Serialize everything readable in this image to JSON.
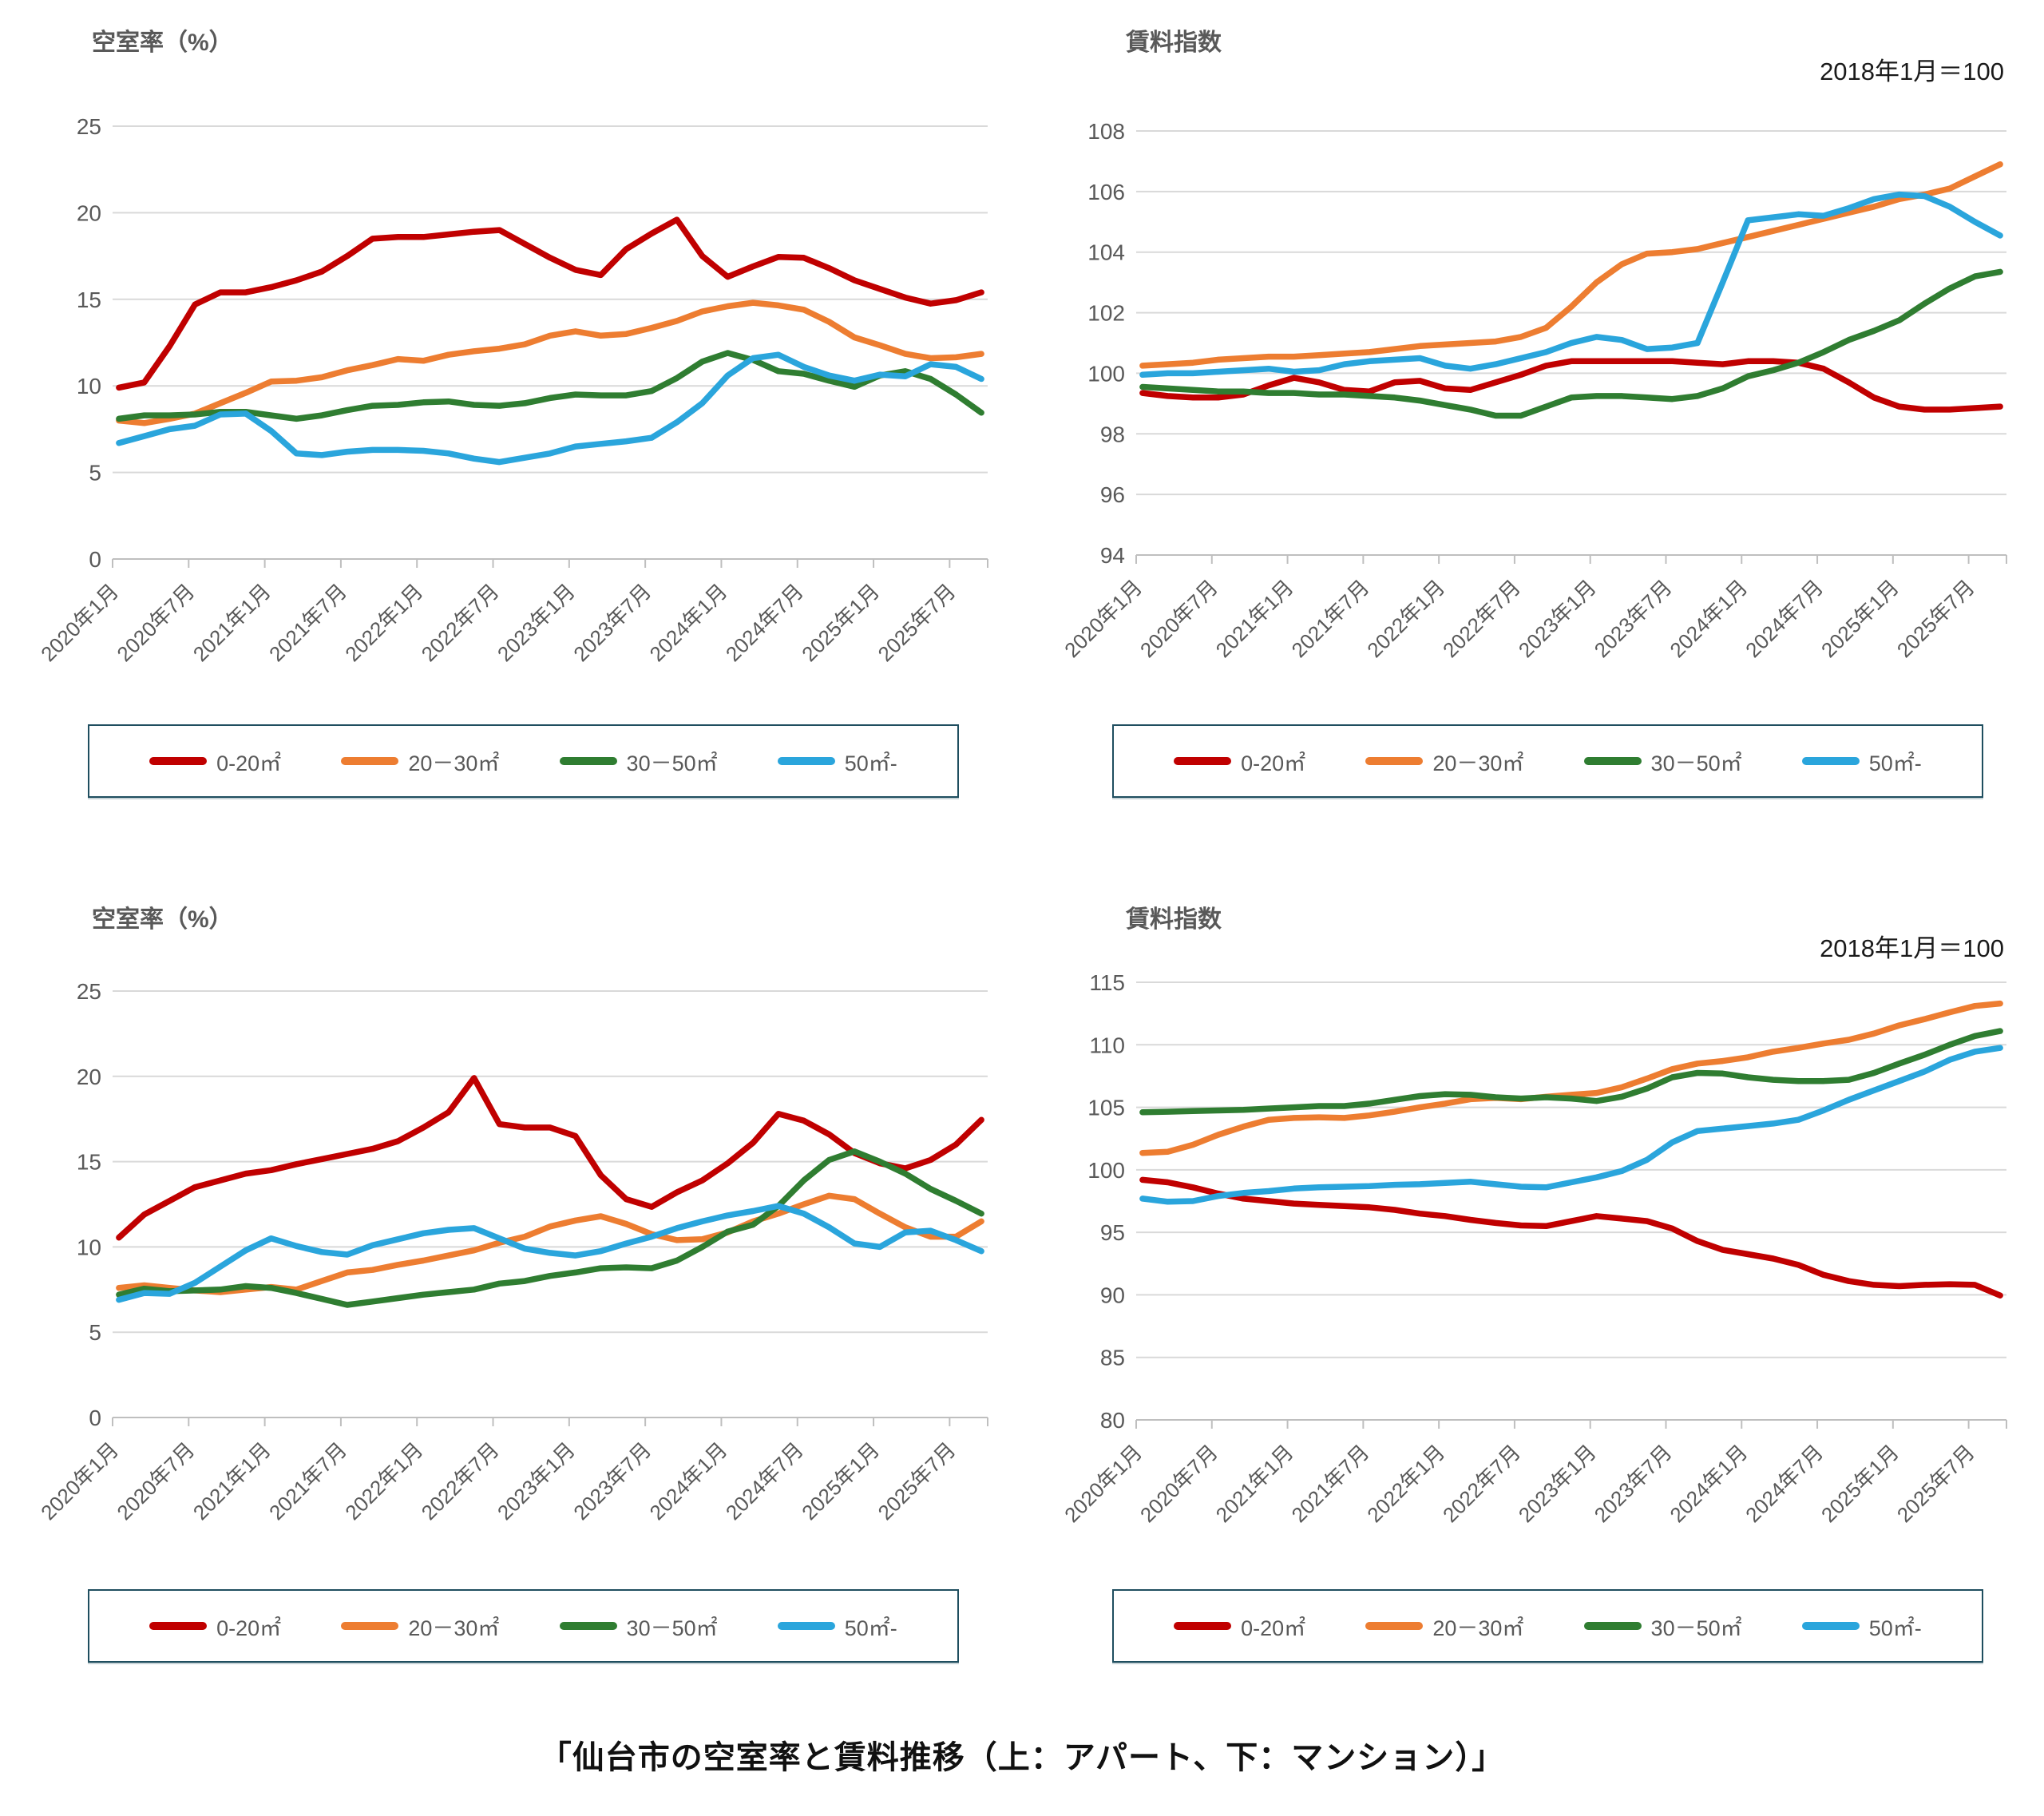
{
  "caption": "「仙台市の空室率と賃料推移（上：アパート、下：マンション）」",
  "legend": {
    "items": [
      {
        "label": "0-20㎡",
        "color": "#c00000"
      },
      {
        "label": "20－30㎡",
        "color": "#ed7d31"
      },
      {
        "label": "30－50㎡",
        "color": "#2f7d31"
      },
      {
        "label": "50㎡-",
        "color": "#2aa5dc"
      }
    ]
  },
  "xtick_labels": [
    "2020年1月",
    "2020年7月",
    "2021年1月",
    "2021年7月",
    "2022年1月",
    "2022年7月",
    "2023年1月",
    "2023年7月",
    "2024年1月",
    "2024年7月",
    "2025年1月",
    "2025年7月"
  ],
  "chart_data": [
    {
      "id": "apartment-vacancy",
      "type": "line",
      "title": "空室率（%）",
      "subtitle": "",
      "ylim": [
        0,
        25
      ],
      "yticks": [
        0,
        5,
        10,
        15,
        20,
        25
      ],
      "total_months": 69,
      "month_step": 2,
      "series": [
        {
          "name": "0-20㎡",
          "color": "#c00000",
          "values": [
            9.9,
            10.2,
            12.3,
            14.7,
            15.4,
            15.4,
            15.7,
            16.1,
            16.6,
            17.5,
            18.5,
            18.6,
            18.6,
            18.75,
            18.9,
            19.0,
            18.2,
            17.4,
            16.7,
            16.4,
            17.9,
            18.8,
            19.6,
            17.5,
            16.3,
            16.9,
            17.45,
            17.4,
            16.8,
            16.1,
            15.6,
            15.1,
            14.75,
            14.95,
            15.4
          ]
        },
        {
          "name": "20－30㎡",
          "color": "#ed7d31",
          "values": [
            8.0,
            7.85,
            8.1,
            8.4,
            9.0,
            9.6,
            10.25,
            10.3,
            10.5,
            10.9,
            11.2,
            11.55,
            11.45,
            11.8,
            12.0,
            12.15,
            12.4,
            12.9,
            13.15,
            12.9,
            13.0,
            13.35,
            13.75,
            14.3,
            14.6,
            14.8,
            14.65,
            14.4,
            13.7,
            12.8,
            12.35,
            11.85,
            11.6,
            11.65,
            11.85
          ]
        },
        {
          "name": "30－50㎡",
          "color": "#2f7d31",
          "values": [
            8.1,
            8.3,
            8.3,
            8.35,
            8.5,
            8.5,
            8.3,
            8.1,
            8.3,
            8.6,
            8.85,
            8.9,
            9.05,
            9.1,
            8.9,
            8.85,
            9.0,
            9.3,
            9.5,
            9.45,
            9.45,
            9.7,
            10.45,
            11.4,
            11.9,
            11.5,
            10.85,
            10.7,
            10.3,
            9.95,
            10.6,
            10.85,
            10.4,
            9.5,
            8.45
          ]
        },
        {
          "name": "50㎡-",
          "color": "#2aa5dc",
          "values": [
            6.7,
            7.1,
            7.5,
            7.7,
            8.35,
            8.4,
            7.4,
            6.1,
            6.0,
            6.2,
            6.3,
            6.3,
            6.25,
            6.1,
            5.8,
            5.6,
            5.85,
            6.1,
            6.5,
            6.65,
            6.8,
            7.0,
            7.9,
            9.0,
            10.6,
            11.6,
            11.8,
            11.1,
            10.6,
            10.3,
            10.65,
            10.55,
            11.25,
            11.1,
            10.4
          ]
        }
      ]
    },
    {
      "id": "apartment-rent-index",
      "type": "line",
      "title": "賃料指数",
      "subtitle": "2018年1月＝100",
      "ylim": [
        94,
        108
      ],
      "yticks": [
        94,
        96,
        98,
        100,
        102,
        104,
        106,
        108
      ],
      "total_months": 69,
      "month_step": 2,
      "series": [
        {
          "name": "0-20㎡",
          "color": "#c00000",
          "values": [
            99.35,
            99.25,
            99.2,
            99.2,
            99.3,
            99.6,
            99.85,
            99.7,
            99.45,
            99.4,
            99.7,
            99.75,
            99.5,
            99.45,
            99.7,
            99.95,
            100.25,
            100.4,
            100.4,
            100.4,
            100.4,
            100.4,
            100.35,
            100.3,
            100.4,
            100.4,
            100.35,
            100.15,
            99.7,
            99.2,
            98.9,
            98.8,
            98.8,
            98.85,
            98.9
          ]
        },
        {
          "name": "20－30㎡",
          "color": "#ed7d31",
          "values": [
            100.25,
            100.3,
            100.35,
            100.45,
            100.5,
            100.55,
            100.55,
            100.6,
            100.65,
            100.7,
            100.8,
            100.9,
            100.95,
            101.0,
            101.05,
            101.2,
            101.5,
            102.2,
            103.0,
            103.6,
            103.95,
            104.0,
            104.1,
            104.3,
            104.5,
            104.7,
            104.9,
            105.1,
            105.3,
            105.5,
            105.75,
            105.9,
            106.1,
            106.5,
            106.9
          ]
        },
        {
          "name": "30－50㎡",
          "color": "#2f7d31",
          "values": [
            99.55,
            99.5,
            99.45,
            99.4,
            99.4,
            99.35,
            99.35,
            99.3,
            99.3,
            99.25,
            99.2,
            99.1,
            98.95,
            98.8,
            98.6,
            98.6,
            98.9,
            99.2,
            99.25,
            99.25,
            99.2,
            99.15,
            99.25,
            99.5,
            99.9,
            100.1,
            100.35,
            100.7,
            101.1,
            101.4,
            101.75,
            102.3,
            102.8,
            103.2,
            103.35
          ]
        },
        {
          "name": "50㎡-",
          "color": "#2aa5dc",
          "values": [
            99.95,
            100.0,
            100.0,
            100.05,
            100.1,
            100.15,
            100.05,
            100.1,
            100.3,
            100.4,
            100.45,
            100.5,
            100.25,
            100.15,
            100.3,
            100.5,
            100.7,
            101.0,
            101.2,
            101.1,
            100.8,
            100.85,
            101.0,
            103.0,
            105.05,
            105.15,
            105.25,
            105.2,
            105.45,
            105.75,
            105.9,
            105.85,
            105.5,
            105.0,
            104.55
          ]
        }
      ]
    },
    {
      "id": "mansion-vacancy",
      "type": "line",
      "title": "空室率（%）",
      "subtitle": "",
      "ylim": [
        0,
        25
      ],
      "yticks": [
        0,
        5,
        10,
        15,
        20,
        25
      ],
      "total_months": 69,
      "month_step": 2,
      "series": [
        {
          "name": "0-20㎡",
          "color": "#c00000",
          "values": [
            10.55,
            11.9,
            12.7,
            13.5,
            13.9,
            14.3,
            14.5,
            14.85,
            15.15,
            15.45,
            15.75,
            16.2,
            17.0,
            17.9,
            19.9,
            17.2,
            17.0,
            17.0,
            16.5,
            14.2,
            12.8,
            12.35,
            13.2,
            13.9,
            14.9,
            16.1,
            17.8,
            17.4,
            16.6,
            15.5,
            14.9,
            14.6,
            15.1,
            16.0,
            17.45
          ]
        },
        {
          "name": "20－30㎡",
          "color": "#ed7d31",
          "values": [
            7.6,
            7.75,
            7.6,
            7.45,
            7.35,
            7.5,
            7.65,
            7.5,
            8.0,
            8.5,
            8.65,
            8.95,
            9.2,
            9.5,
            9.8,
            10.25,
            10.6,
            11.2,
            11.55,
            11.8,
            11.35,
            10.75,
            10.4,
            10.45,
            10.85,
            11.5,
            11.95,
            12.5,
            13.0,
            12.8,
            11.95,
            11.15,
            10.6,
            10.6,
            11.5
          ]
        },
        {
          "name": "30－50㎡",
          "color": "#2f7d31",
          "values": [
            7.2,
            7.55,
            7.4,
            7.45,
            7.5,
            7.7,
            7.6,
            7.3,
            6.95,
            6.6,
            6.8,
            7.0,
            7.2,
            7.35,
            7.5,
            7.85,
            8.0,
            8.3,
            8.5,
            8.75,
            8.8,
            8.75,
            9.2,
            10.0,
            10.9,
            11.3,
            12.4,
            13.9,
            15.1,
            15.6,
            15.0,
            14.3,
            13.4,
            12.7,
            11.95
          ]
        },
        {
          "name": "50㎡-",
          "color": "#2aa5dc",
          "values": [
            6.9,
            7.3,
            7.25,
            7.9,
            8.85,
            9.8,
            10.5,
            10.05,
            9.7,
            9.55,
            10.1,
            10.45,
            10.8,
            11.0,
            11.1,
            10.5,
            9.9,
            9.65,
            9.5,
            9.75,
            10.2,
            10.6,
            11.1,
            11.5,
            11.85,
            12.1,
            12.4,
            11.95,
            11.15,
            10.2,
            10.0,
            10.85,
            10.95,
            10.4,
            9.75
          ]
        }
      ]
    },
    {
      "id": "mansion-rent-index",
      "type": "line",
      "title": "賃料指数",
      "subtitle": "2018年1月＝100",
      "ylim": [
        80,
        115
      ],
      "yticks": [
        80,
        85,
        90,
        95,
        100,
        105,
        110,
        115
      ],
      "total_months": 69,
      "month_step": 2,
      "series": [
        {
          "name": "0-20㎡",
          "color": "#c00000",
          "values": [
            99.2,
            99.0,
            98.6,
            98.1,
            97.7,
            97.5,
            97.3,
            97.2,
            97.1,
            97.0,
            96.8,
            96.5,
            96.3,
            96.0,
            95.75,
            95.55,
            95.5,
            95.9,
            96.3,
            96.1,
            95.9,
            95.3,
            94.3,
            93.6,
            93.25,
            92.9,
            92.4,
            91.6,
            91.1,
            90.8,
            90.7,
            90.8,
            90.85,
            90.8,
            89.95
          ]
        },
        {
          "name": "20－30㎡",
          "color": "#ed7d31",
          "values": [
            101.35,
            101.45,
            102.0,
            102.8,
            103.45,
            104.0,
            104.15,
            104.2,
            104.15,
            104.35,
            104.65,
            105.0,
            105.3,
            105.65,
            105.75,
            105.65,
            105.85,
            106.0,
            106.15,
            106.6,
            107.3,
            108.05,
            108.5,
            108.7,
            109.0,
            109.45,
            109.75,
            110.1,
            110.4,
            110.9,
            111.55,
            112.05,
            112.6,
            113.1,
            113.3
          ]
        },
        {
          "name": "30－50㎡",
          "color": "#2f7d31",
          "values": [
            104.6,
            104.65,
            104.7,
            104.75,
            104.8,
            104.9,
            105.0,
            105.1,
            105.1,
            105.3,
            105.6,
            105.9,
            106.05,
            106.0,
            105.8,
            105.7,
            105.8,
            105.7,
            105.5,
            105.85,
            106.5,
            107.4,
            107.75,
            107.7,
            107.4,
            107.2,
            107.1,
            107.1,
            107.2,
            107.75,
            108.5,
            109.2,
            110.0,
            110.7,
            111.1
          ]
        },
        {
          "name": "50㎡-",
          "color": "#2aa5dc",
          "values": [
            97.7,
            97.45,
            97.5,
            97.9,
            98.15,
            98.3,
            98.5,
            98.6,
            98.65,
            98.7,
            98.8,
            98.85,
            98.95,
            99.05,
            98.85,
            98.65,
            98.6,
            99.0,
            99.4,
            99.9,
            100.8,
            102.2,
            103.1,
            103.3,
            103.5,
            103.7,
            104.0,
            104.75,
            105.6,
            106.35,
            107.1,
            107.85,
            108.8,
            109.45,
            109.75
          ]
        }
      ]
    }
  ]
}
